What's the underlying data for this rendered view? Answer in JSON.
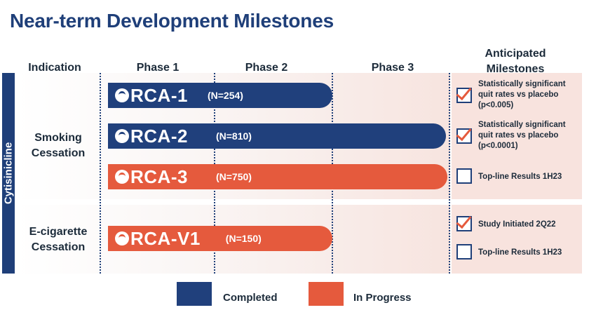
{
  "title": "Near-term Development Milestones",
  "columns": {
    "indication": "Indication",
    "phase1": "Phase 1",
    "phase2": "Phase 2",
    "phase3": "Phase 3",
    "milestones_line1": "Anticipated",
    "milestones_line2": "Milestones"
  },
  "sidebar_label": "Cytisinicline",
  "colors": {
    "completed": "#20407c",
    "in_progress": "#e55a3d",
    "panel": "#f8e3de"
  },
  "groups": [
    {
      "indication_line1": "Smoking",
      "indication_line2": "Cessation"
    },
    {
      "indication_line1": "E-cigarette",
      "indication_line2": "Cessation"
    }
  ],
  "trials": [
    {
      "name": "RCA-1",
      "n": "(N=254)",
      "status": "completed",
      "phase_reached": "Phase 2"
    },
    {
      "name": "RCA-2",
      "n": "(N=810)",
      "status": "completed",
      "phase_reached": "Phase 3"
    },
    {
      "name": "RCA-3",
      "n": "(N=750)",
      "status": "in progress",
      "phase_reached": "Phase 3"
    },
    {
      "name": "RCA-V1",
      "n": "(N=150)",
      "status": "in progress",
      "phase_reached": "Phase 2"
    }
  ],
  "milestones": [
    {
      "line1": "Statistically significant",
      "line2": "quit rates vs placebo",
      "line3": "(p<0.005)",
      "checked": true
    },
    {
      "line1": "Statistically significant",
      "line2": "quit rates vs placebo",
      "line3": "(p<0.0001)",
      "checked": true
    },
    {
      "line1": "Top-line Results 1H23",
      "checked": false
    },
    {
      "line1": "Study Initiated 2Q22",
      "checked": true
    },
    {
      "line1": "Top-line Results 1H23",
      "checked": false
    }
  ],
  "legend": {
    "completed": "Completed",
    "in_progress": "In Progress"
  }
}
